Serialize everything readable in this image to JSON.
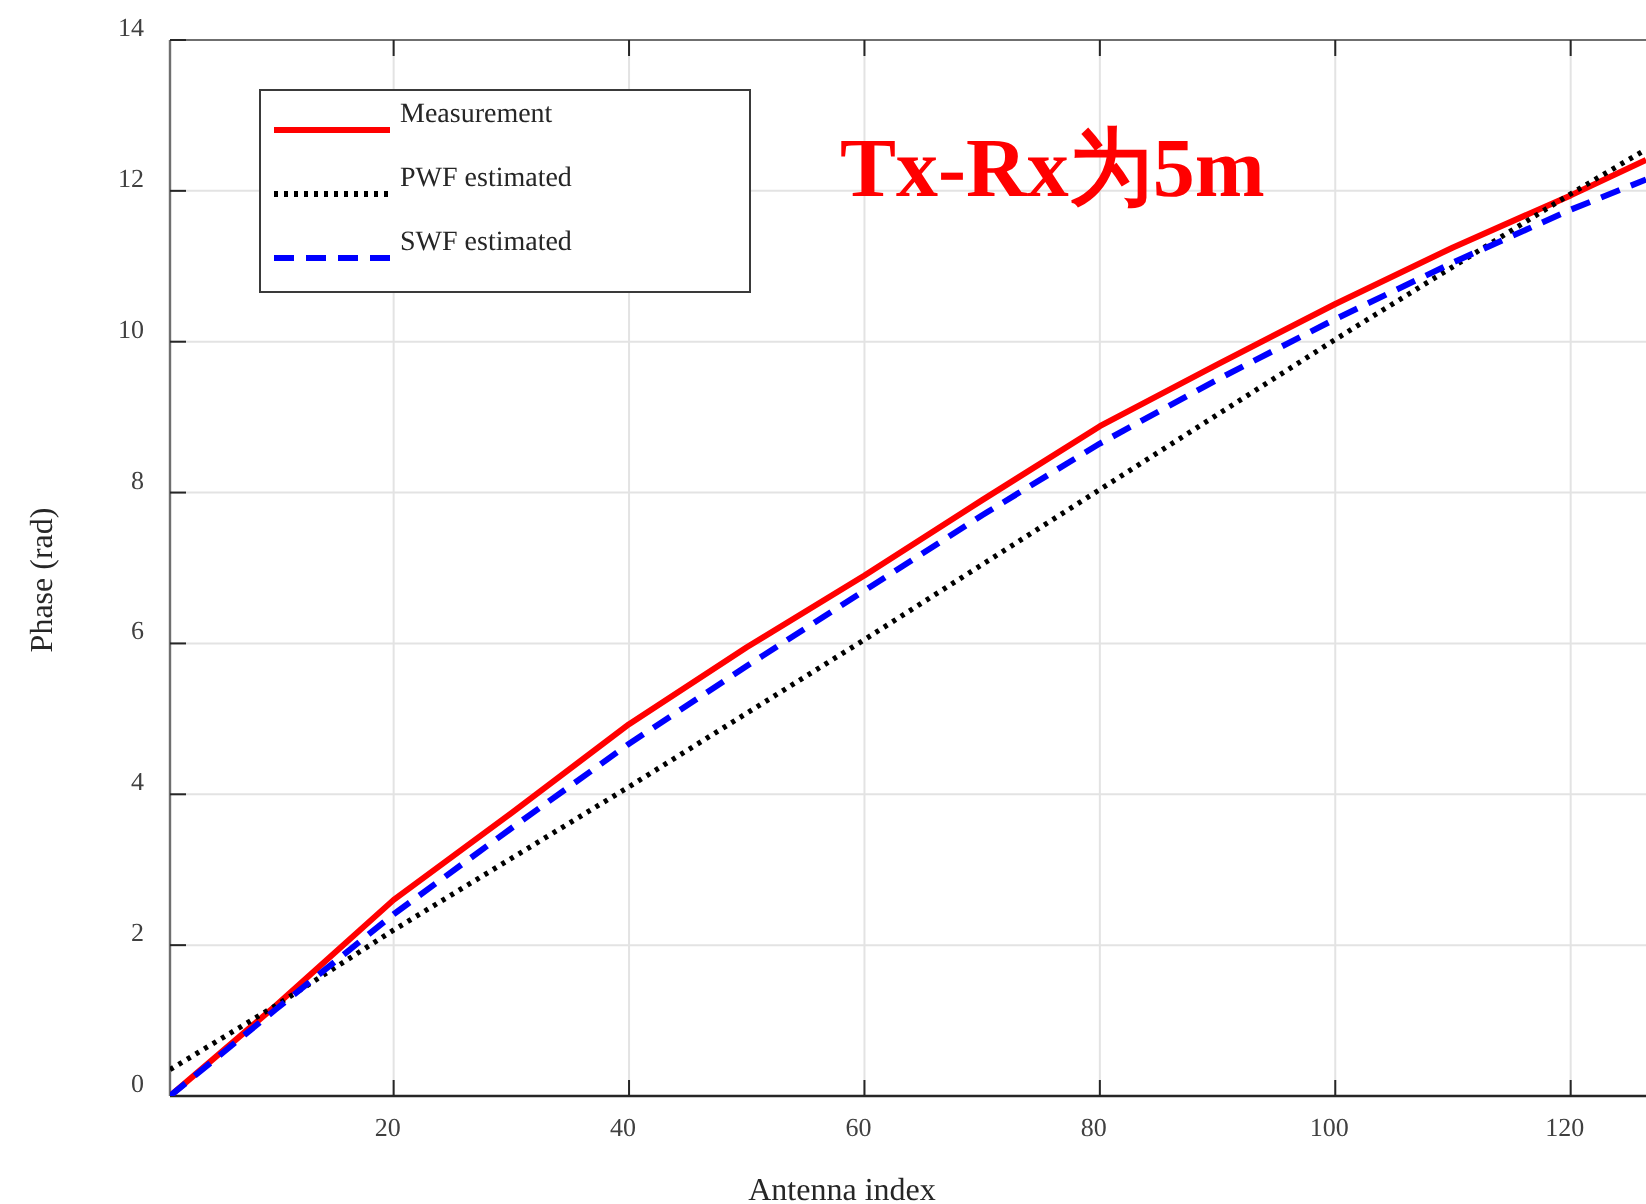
{
  "chart_data": {
    "type": "line",
    "xlabel": "Antenna index",
    "ylabel": "Phase (rad)",
    "annotations": [
      "Tx-Rx为5m"
    ],
    "xlim": [
      1,
      126.4
    ],
    "ylim": [
      0,
      14
    ],
    "xticks": [
      20,
      40,
      60,
      80,
      100,
      120
    ],
    "yticks": [
      0,
      2,
      4,
      6,
      8,
      10,
      12,
      14
    ],
    "grid": true,
    "legend": "top left",
    "series": [
      {
        "name": "Measurement",
        "color": "#ff0000",
        "line_style": "solid",
        "x": [
          1,
          10,
          20,
          30,
          40,
          50,
          60,
          70,
          80,
          90,
          100,
          110,
          120,
          126.4
        ],
        "values": [
          0,
          1.2,
          2.6,
          3.75,
          4.93,
          5.95,
          6.9,
          7.9,
          8.88,
          9.7,
          10.5,
          11.25,
          11.94,
          12.41
        ]
      },
      {
        "name": "PWF estimated",
        "color": "#000000",
        "line_style": "dotted",
        "x": [
          1,
          10,
          20,
          30,
          40,
          60,
          80,
          100,
          120,
          126.4
        ],
        "values": [
          0.35,
          1.2,
          2.2,
          3.15,
          4.1,
          6.05,
          8.04,
          10.03,
          11.96,
          12.55
        ]
      },
      {
        "name": "SWF estimated",
        "color": "#0000ff",
        "line_style": "dashed",
        "x": [
          1,
          10,
          20,
          30,
          40,
          50,
          60,
          70,
          80,
          90,
          100,
          110,
          120,
          126.4
        ],
        "values": [
          0,
          1.15,
          2.41,
          3.55,
          4.67,
          5.7,
          6.7,
          7.7,
          8.65,
          9.5,
          10.3,
          11.05,
          11.75,
          12.15
        ]
      }
    ]
  }
}
